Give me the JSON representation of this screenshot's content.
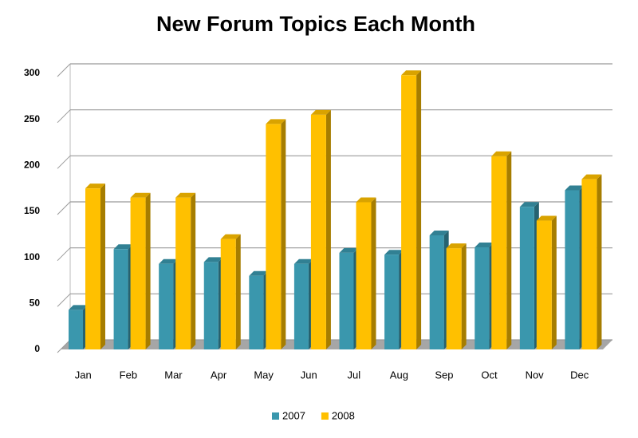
{
  "chart_data": {
    "type": "bar",
    "title": "New Forum Topics Each Month",
    "categories": [
      "Jan",
      "Feb",
      "Mar",
      "Apr",
      "May",
      "Jun",
      "Jul",
      "Aug",
      "Sep",
      "Oct",
      "Nov",
      "Dec"
    ],
    "series": [
      {
        "name": "2007",
        "color": "#3a97ad",
        "values": [
          43,
          109,
          93,
          95,
          80,
          93,
          105,
          103,
          124,
          111,
          155,
          173
        ]
      },
      {
        "name": "2008",
        "color": "#ffc000",
        "values": [
          175,
          165,
          165,
          120,
          245,
          255,
          160,
          298,
          110,
          210,
          140,
          185
        ]
      }
    ],
    "ylim": [
      0,
      300
    ],
    "yticks": [
      0,
      50,
      100,
      150,
      200,
      250,
      300
    ],
    "grid": true,
    "legend": "bottom"
  }
}
